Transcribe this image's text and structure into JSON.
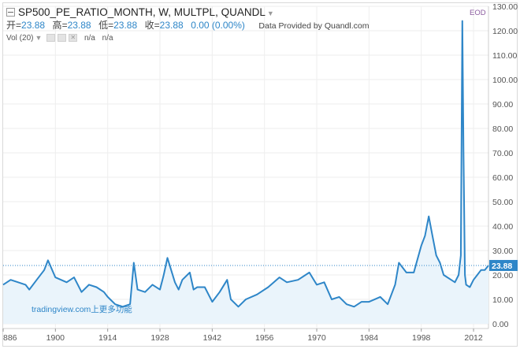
{
  "header": {
    "symbol": "SP500_PE_RATIO_MONTH, W, MULTPL, QUANDL",
    "ohlc": [
      {
        "label": "开",
        "value": "23.88"
      },
      {
        "label": "高",
        "value": "23.88"
      },
      {
        "label": "低",
        "value": "23.88"
      },
      {
        "label": "收",
        "value": "23.88"
      }
    ],
    "change": "0.00 (0.00%)",
    "source": "Data Provided by Quandl.com",
    "vol_label": "Vol (20)",
    "vol_values": [
      "n/a",
      "n/a"
    ],
    "eod": "EOD"
  },
  "watermark": "tradingview.com上更多功能",
  "colors": {
    "line": "#2e86c8",
    "fill": "#eaf4fb",
    "grid": "#eeeeee",
    "label_bg": "#2e86c8"
  },
  "chart_data": {
    "type": "area",
    "title": "SP500_PE_RATIO_MONTH, W, MULTPL, QUANDL",
    "xlabel": "",
    "ylabel": "",
    "x_ticks": [
      "886",
      "1900",
      "1914",
      "1928",
      "1942",
      "1956",
      "1970",
      "1984",
      "1998",
      "2012"
    ],
    "y_ticks": [
      "0.00",
      "10.00",
      "20.00",
      "30.00",
      "40.00",
      "50.00",
      "60.00",
      "70.00",
      "80.00",
      "90.00",
      "100.00",
      "110.00",
      "120.00",
      "130.00"
    ],
    "ylim": [
      0,
      130
    ],
    "xlim": [
      1886,
      2016
    ],
    "last_value": "23.88",
    "series": [
      {
        "x": [
          1886,
          1888,
          1890,
          1892,
          1893,
          1895,
          1897,
          1898,
          1900,
          1903,
          1905,
          1907,
          1909,
          1911,
          1913,
          1914,
          1916,
          1918,
          1920,
          1921,
          1922,
          1924,
          1926,
          1928,
          1929,
          1930,
          1932,
          1933,
          1934,
          1936,
          1937,
          1938,
          1940,
          1942,
          1944,
          1946,
          1947,
          1949,
          1951,
          1954,
          1957,
          1960,
          1962,
          1965,
          1968,
          1970,
          1972,
          1974,
          1976,
          1978,
          1980,
          1982,
          1984,
          1987,
          1989,
          1991,
          1992,
          1994,
          1996,
          1998,
          1999,
          2000,
          2001,
          2002,
          2003,
          2004,
          2005,
          2006,
          2007,
          2008,
          2008.6,
          2009,
          2009.3,
          2009.7,
          2010,
          2011,
          2012,
          2013,
          2014,
          2015,
          2016
        ],
        "values": [
          16,
          18,
          17,
          16,
          14,
          18,
          22,
          26,
          19,
          17,
          19,
          13,
          16,
          15,
          13,
          11,
          8,
          7,
          8,
          25,
          14,
          13,
          16,
          14,
          20,
          27,
          17,
          14,
          18,
          21,
          14,
          15,
          15,
          9,
          13,
          18,
          10,
          7,
          10,
          12,
          15,
          19,
          17,
          18,
          21,
          16,
          17,
          10,
          11,
          8,
          7,
          9,
          9,
          11,
          8,
          16,
          25,
          21,
          21,
          32,
          36,
          44,
          36,
          28,
          25,
          20,
          19,
          18,
          17,
          20,
          28,
          124,
          70,
          20,
          16,
          15,
          18,
          20,
          22,
          22,
          23.88
        ]
      }
    ]
  }
}
